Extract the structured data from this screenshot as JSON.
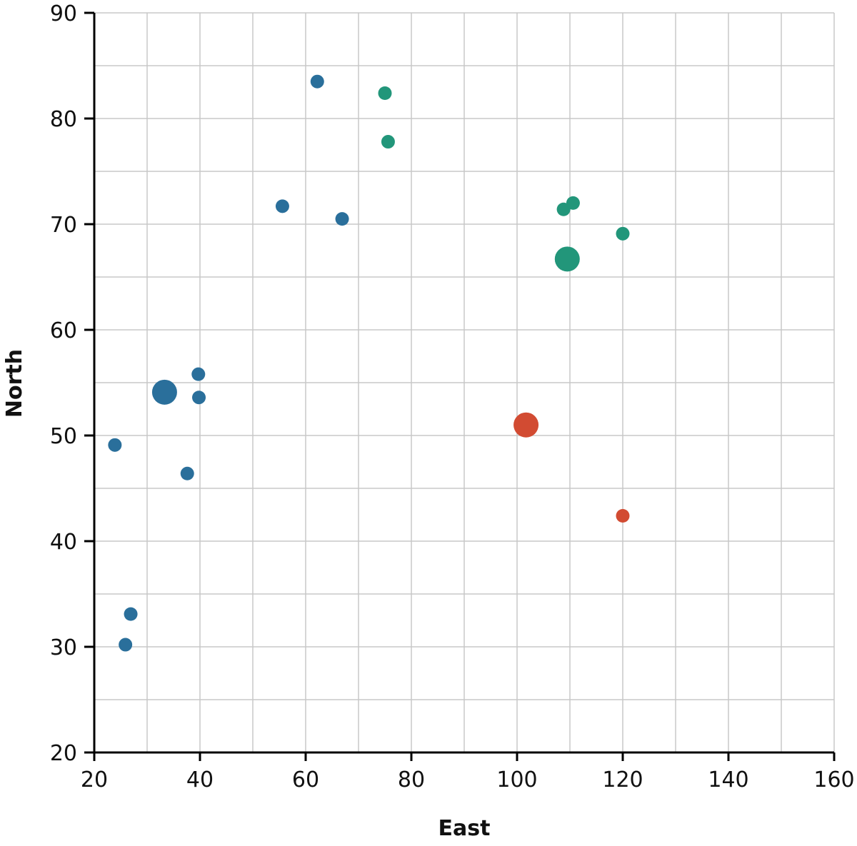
{
  "chart_data": {
    "type": "scatter",
    "title": "",
    "xlabel": "East",
    "ylabel": "North",
    "xlim": [
      20,
      160
    ],
    "ylim": [
      20,
      90
    ],
    "x_ticks": [
      20,
      40,
      60,
      80,
      100,
      120,
      140,
      160
    ],
    "y_ticks": [
      20,
      30,
      40,
      50,
      60,
      70,
      80,
      90
    ],
    "x_minor_step": 10,
    "y_minor_step": 5,
    "grid": true,
    "colors": {
      "blue": "#2a6f9b",
      "green": "#22967a",
      "red": "#d24b32"
    },
    "series": [
      {
        "color": "#2a6f9b",
        "points": [
          {
            "x": 62.2,
            "y": 83.5,
            "size": "small"
          },
          {
            "x": 55.6,
            "y": 71.7,
            "size": "small"
          },
          {
            "x": 66.9,
            "y": 70.5,
            "size": "small"
          },
          {
            "x": 33.3,
            "y": 54.1,
            "size": "large"
          },
          {
            "x": 39.7,
            "y": 55.8,
            "size": "small"
          },
          {
            "x": 39.8,
            "y": 53.6,
            "size": "small"
          },
          {
            "x": 23.9,
            "y": 49.1,
            "size": "small"
          },
          {
            "x": 37.6,
            "y": 46.4,
            "size": "small"
          },
          {
            "x": 26.9,
            "y": 33.1,
            "size": "small"
          },
          {
            "x": 25.9,
            "y": 30.2,
            "size": "small"
          }
        ]
      },
      {
        "color": "#22967a",
        "points": [
          {
            "x": 75.0,
            "y": 82.4,
            "size": "small"
          },
          {
            "x": 75.6,
            "y": 77.8,
            "size": "small"
          },
          {
            "x": 110.6,
            "y": 72.0,
            "size": "small"
          },
          {
            "x": 108.8,
            "y": 71.4,
            "size": "small"
          },
          {
            "x": 120.0,
            "y": 69.1,
            "size": "small"
          },
          {
            "x": 109.5,
            "y": 66.7,
            "size": "large"
          }
        ]
      },
      {
        "color": "#d24b32",
        "points": [
          {
            "x": 101.7,
            "y": 51.0,
            "size": "large"
          },
          {
            "x": 120.0,
            "y": 42.4,
            "size": "small"
          }
        ]
      }
    ]
  }
}
